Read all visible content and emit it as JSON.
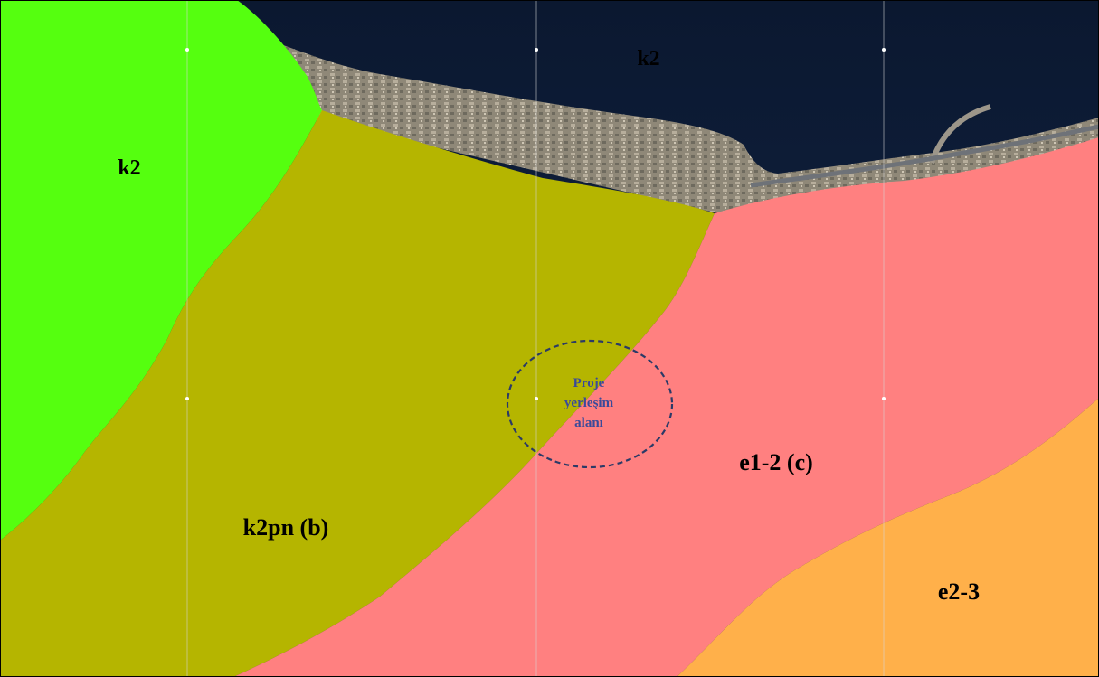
{
  "map": {
    "units": [
      {
        "id": "k2-sea",
        "label": "k2"
      },
      {
        "id": "k2-land",
        "label": "k2",
        "color": "#55FF0F"
      },
      {
        "id": "k2pn",
        "label": "k2pn (b)",
        "color": "#B5B500"
      },
      {
        "id": "e1-2",
        "label": "e1-2 (c)",
        "color": "#FF8080"
      },
      {
        "id": "e2-3",
        "label": "e2-3",
        "color": "#FFB04A"
      }
    ],
    "project_area": {
      "lines": [
        "Proje",
        "yerleşim",
        "alanı"
      ],
      "border_color": "#2B3A67"
    },
    "colors": {
      "sea": "#0E1C33",
      "shore": "#8A8272",
      "grid": "#D8D8D8",
      "frame": "#000000"
    }
  }
}
